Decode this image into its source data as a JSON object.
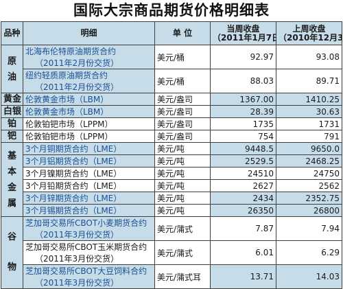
{
  "title": "国际大宗商品期货价格明细表",
  "headers": {
    "category": "品种",
    "detail": "明细",
    "unit": "单 位",
    "current": "当周收盘",
    "current_date": "（2011年1月7日）",
    "previous": "上周收盘",
    "previous_date": "（2010年12月31日）"
  },
  "categories": {
    "crude": "原油",
    "gold": "黄金",
    "silver": "白银",
    "platinum": "铂",
    "palladium": "钯",
    "base_metals": "基本金属",
    "grains": "谷物"
  },
  "rows": [
    {
      "detail": "北海布伦特原油期货合约",
      "sub": "（2011年2月份交货）",
      "unit": "美元/桶",
      "current": "92.97",
      "previous": "93.08"
    },
    {
      "detail": "纽约轻质原油期货合约",
      "sub": "（2011年2月份交货）",
      "unit": "美元/桶",
      "current": "88.03",
      "previous": "89.71"
    },
    {
      "detail": "伦敦黄金市场（LBM）",
      "unit": "美元/盎司",
      "current": "1367.00",
      "previous": "1410.25"
    },
    {
      "detail": "伦敦黄金市场（LBM）",
      "unit": "美元/盎司",
      "current": "28.39",
      "previous": "30.63"
    },
    {
      "detail": "伦敦铂钯市场（LPPM）",
      "unit": "美元/盎司",
      "current": "1735",
      "previous": "1731"
    },
    {
      "detail": "伦敦铂钯市场（LPPM）",
      "unit": "美元/盎司",
      "current": "754",
      "previous": "791"
    },
    {
      "detail": "3个月铜期货合约（LME）",
      "unit": "美元/吨",
      "current": "9448.5",
      "previous": "9650.0"
    },
    {
      "detail": "3个月铝期货合约（LME）",
      "unit": "美元/吨",
      "current": "2529.5",
      "previous": "2468.25"
    },
    {
      "detail": "3个月镍期货合约（LME）",
      "unit": "美元/吨",
      "current": "24510",
      "previous": "24750"
    },
    {
      "detail": "3个月铅期货合约（LME）",
      "unit": "美元/吨",
      "current": "2627",
      "previous": "2562"
    },
    {
      "detail": "3个月锌期货合约（LME）",
      "unit": "美元/吨",
      "current": "2434",
      "previous": "2352.75"
    },
    {
      "detail": "3个月锡期货合约（LME）",
      "unit": "美元/吨",
      "current": "26350",
      "previous": "26800"
    },
    {
      "detail": "芝加哥交易所CBOT小麦期货合约",
      "sub": "（2011年3月份交货）",
      "unit": "美元/蒲式",
      "current": "7.87",
      "previous": "7.94"
    },
    {
      "detail": "芝加哥交易所CBOT玉米期货合约",
      "sub": "（2011年3月份交货）",
      "unit": "美元/蒲式",
      "current": "6.01",
      "previous": "6.29"
    },
    {
      "detail": "芝加哥交易所CBOT大豆饲料合约",
      "sub": "（2011年3月份交货）",
      "unit": "美元/蒲式耳",
      "current": "13.71",
      "previous": "14.03"
    }
  ]
}
